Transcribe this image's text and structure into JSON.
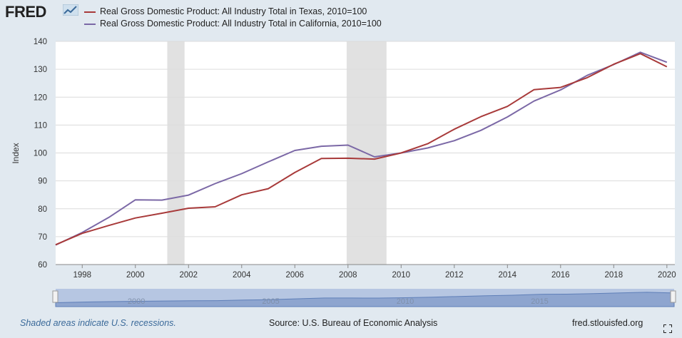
{
  "header": {
    "logo_text": "FRED"
  },
  "footer": {
    "recession_note": "Shaded areas indicate U.S. recessions.",
    "source": "Source: U.S. Bureau of Economic Analysis",
    "site": "fred.stlouisfed.org"
  },
  "colors": {
    "texas": "#a83a3a",
    "california": "#7b68a6",
    "recession": "#e1e1e1",
    "grid": "#dcdcdc",
    "navigator_fill": "#8ea5cf",
    "navigator_bg": "#b6c6e2"
  },
  "chart_data": {
    "type": "line",
    "ylabel": "Index",
    "ylim": [
      60,
      140
    ],
    "yticks": [
      60,
      70,
      80,
      90,
      100,
      110,
      120,
      130,
      140
    ],
    "xlim": [
      1997,
      2020.3
    ],
    "xticks": [
      1998,
      2000,
      2002,
      2004,
      2006,
      2008,
      2010,
      2012,
      2014,
      2016,
      2018,
      2020
    ],
    "recessions": [
      [
        2001.2,
        2001.85
      ],
      [
        2007.95,
        2009.45
      ]
    ],
    "navigator_labels": [
      "2000",
      "2005",
      "2010",
      "2015"
    ],
    "x": [
      1997,
      1998,
      1999,
      2000,
      2001,
      2002,
      2003,
      2004,
      2005,
      2006,
      2007,
      2008,
      2009,
      2010,
      2011,
      2012,
      2013,
      2014,
      2015,
      2016,
      2017,
      2018,
      2019,
      2020
    ],
    "series": [
      {
        "name": "Real Gross Domestic Product: All Industry Total in Texas, 2010=100",
        "values": [
          67.1,
          71.2,
          74.0,
          76.7,
          78.4,
          80.2,
          80.7,
          85.0,
          87.2,
          93.0,
          98.0,
          98.1,
          97.8,
          100.0,
          103.3,
          108.5,
          113.0,
          116.7,
          122.7,
          123.5,
          127.0,
          131.8,
          135.6,
          130.9
        ]
      },
      {
        "name": "Real Gross Domestic Product: All Industry Total in California, 2010=100",
        "values": [
          67.0,
          71.5,
          76.9,
          83.2,
          83.1,
          84.9,
          89.0,
          92.6,
          96.8,
          100.9,
          102.4,
          102.8,
          98.6,
          100.0,
          101.8,
          104.4,
          108.1,
          112.9,
          118.6,
          122.6,
          127.8,
          131.7,
          136.1,
          132.5
        ]
      }
    ]
  }
}
